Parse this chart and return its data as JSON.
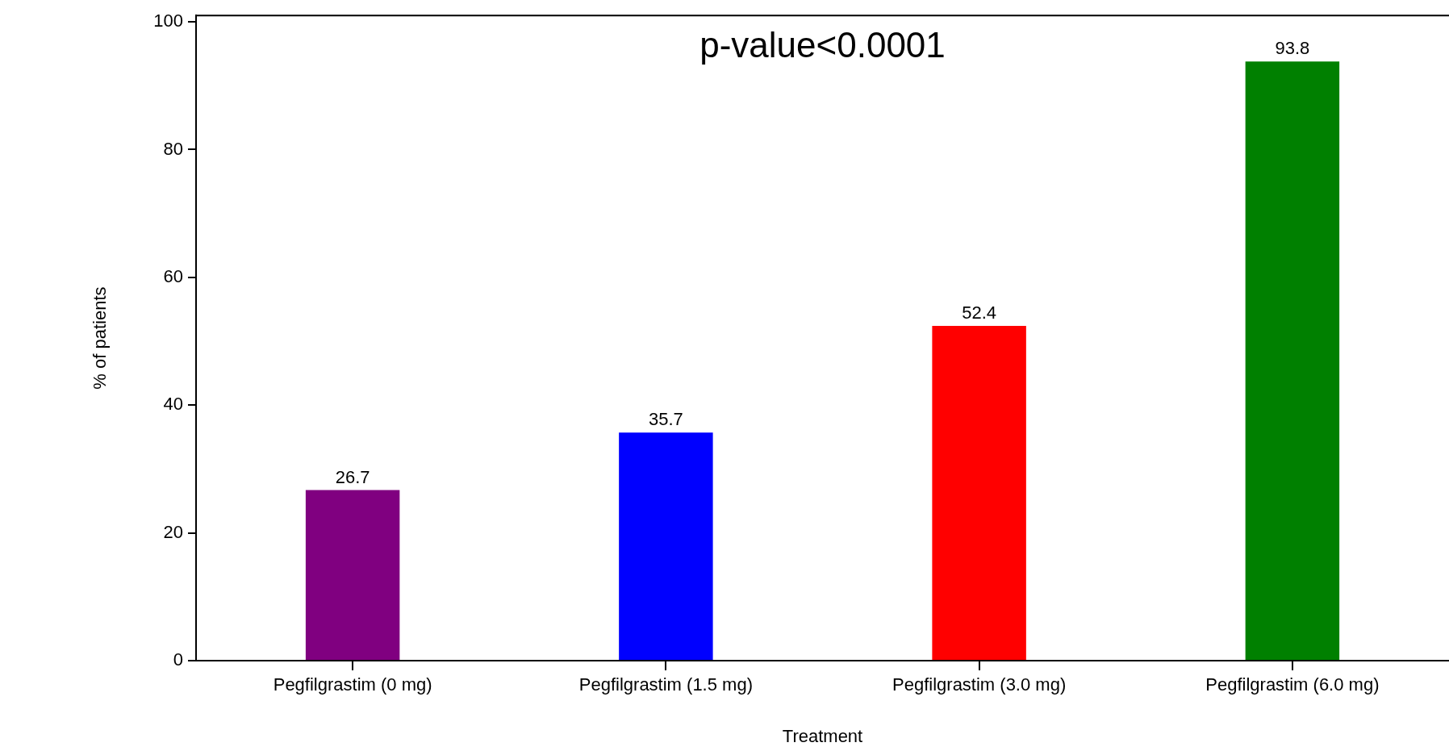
{
  "chart_data": {
    "type": "bar",
    "xlabel": "Treatment",
    "ylabel": "% of patients",
    "categories": [
      "Pegfilgrastim (0 mg)",
      "Pegfilgrastim (1.5 mg)",
      "Pegfilgrastim (3.0 mg)",
      "Pegfilgrastim (6.0 mg)"
    ],
    "values": [
      26.7,
      35.7,
      52.4,
      93.8
    ],
    "colors": [
      "#800080",
      "#0000ff",
      "#ff0000",
      "#008000"
    ],
    "ylim": [
      0,
      101
    ],
    "yticks": [
      0,
      20,
      40,
      60,
      80,
      100
    ],
    "grid": false,
    "legend": false,
    "data_labels": true,
    "annotations": [
      "p-value<0.0001"
    ]
  }
}
